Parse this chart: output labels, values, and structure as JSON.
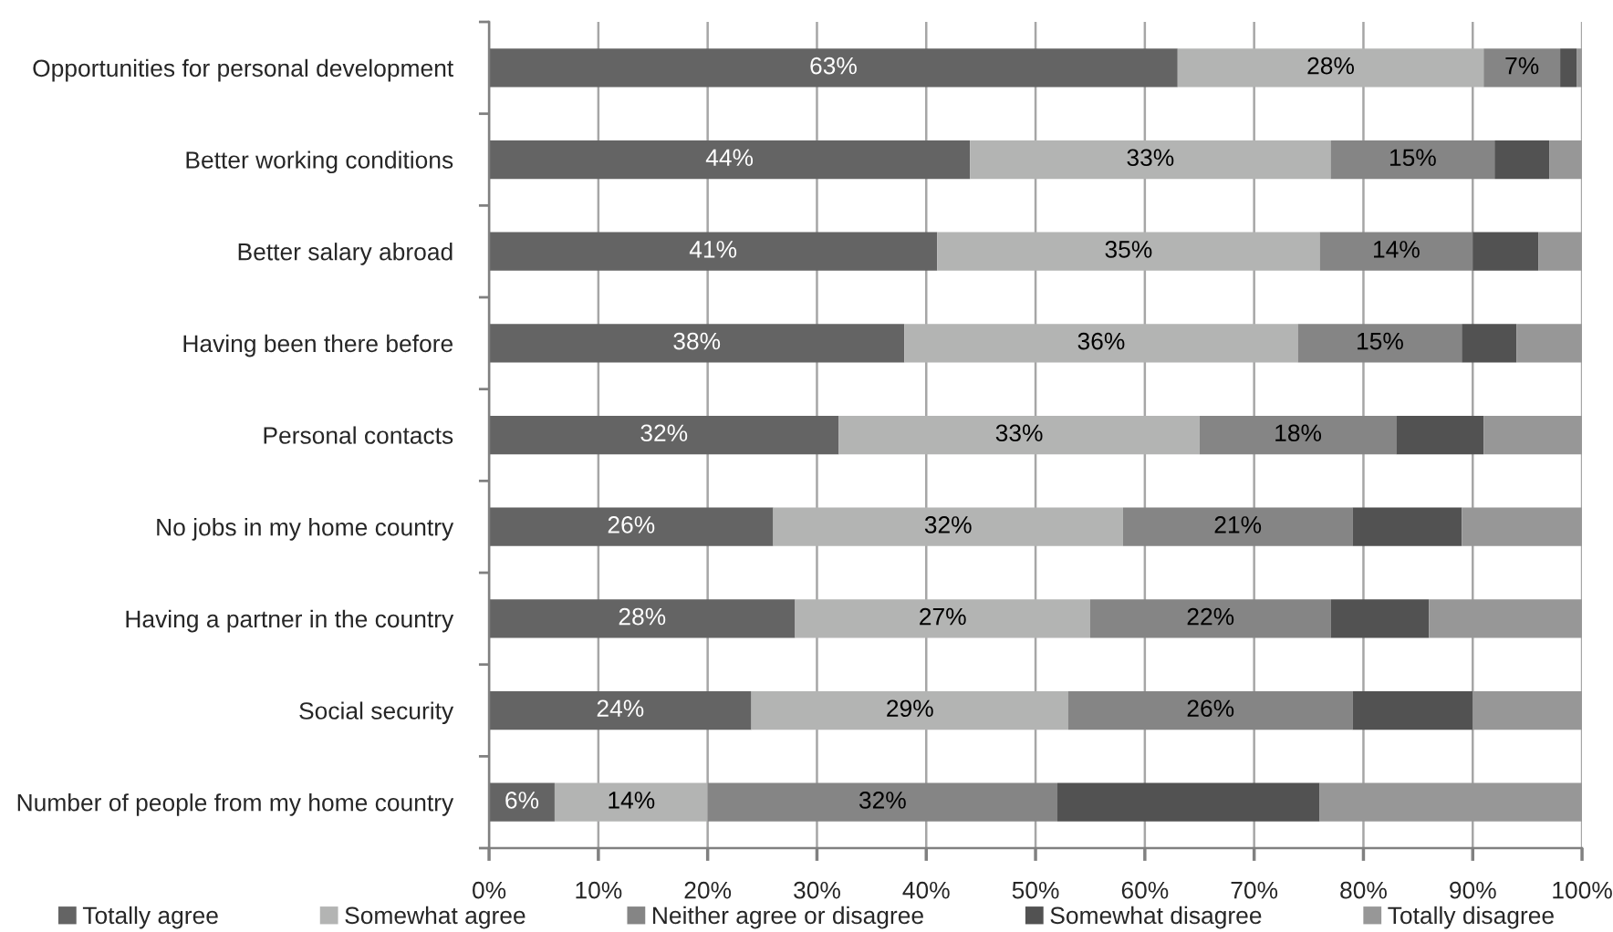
{
  "chart_data": {
    "type": "bar",
    "orientation": "horizontal",
    "stacked": true,
    "categories": [
      "Opportunities for personal development",
      "Better working conditions",
      "Better salary abroad",
      "Having been there before",
      "Personal contacts",
      "No jobs in my home country",
      "Having a partner in the country",
      "Social security",
      "Number of people from my home country"
    ],
    "series": [
      {
        "name": "Totally agree",
        "color": "#646464",
        "values": [
          63,
          44,
          41,
          38,
          32,
          26,
          28,
          24,
          6
        ],
        "value_labels": [
          "63%",
          "44%",
          "41%",
          "38%",
          "32%",
          "26%",
          "28%",
          "24%",
          "6%"
        ]
      },
      {
        "name": "Somewhat agree",
        "color": "#b3b4b3",
        "values": [
          28,
          33,
          35,
          36,
          33,
          32,
          27,
          29,
          14
        ],
        "value_labels": [
          "28%",
          "33%",
          "35%",
          "36%",
          "33%",
          "32%",
          "27%",
          "29%",
          "14%"
        ]
      },
      {
        "name": "Neither agree or disagree",
        "color": "#858585",
        "values": [
          7,
          15,
          14,
          15,
          18,
          21,
          22,
          26,
          32
        ],
        "value_labels": [
          "7%",
          "15%",
          "14%",
          "15%",
          "18%",
          "21%",
          "22%",
          "26%",
          "32%"
        ]
      },
      {
        "name": "Somewhat disagree",
        "color": "#525252",
        "values": [
          1.5,
          5,
          6,
          5,
          8,
          10,
          9,
          11,
          24
        ]
      },
      {
        "name": "Totally disagree",
        "color": "#979797",
        "values": [
          0.5,
          3,
          4,
          6,
          9,
          11,
          14,
          10,
          24
        ]
      }
    ],
    "xlim": [
      0,
      100
    ],
    "xticks": [
      {
        "value": 0,
        "label": "0%"
      },
      {
        "value": 10,
        "label": "10%"
      },
      {
        "value": 20,
        "label": "20%"
      },
      {
        "value": 30,
        "label": "30%"
      },
      {
        "value": 40,
        "label": "40%"
      },
      {
        "value": 50,
        "label": "50%"
      },
      {
        "value": 60,
        "label": "60%"
      },
      {
        "value": 70,
        "label": "70%"
      },
      {
        "value": 80,
        "label": "80%"
      },
      {
        "value": 90,
        "label": "90%"
      },
      {
        "value": 100,
        "label": "100%"
      }
    ],
    "grid": "x",
    "legend": "bottom"
  }
}
